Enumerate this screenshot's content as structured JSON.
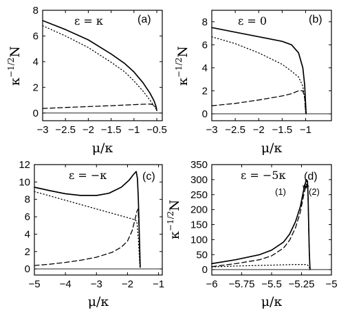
{
  "chart_data": [
    {
      "type": "line",
      "panel": "(a)",
      "annotation": "ε = κ",
      "xlabel": "μ/κ",
      "ylabel": "κ^{-1/2}N",
      "xlim": [
        -3,
        -0.38
      ],
      "ylim": [
        -0.6,
        8
      ],
      "xticks": [
        -3,
        -2.5,
        -2,
        -1.5,
        -1,
        -0.5
      ],
      "xticklabels": [
        "−3",
        "−2.5",
        "−2",
        "−1.5",
        "−1",
        "−0.5"
      ],
      "yticks": [
        0,
        2,
        4,
        6,
        8
      ],
      "yticklabels": [
        "0",
        "2",
        "4",
        "6",
        "8"
      ],
      "series": [
        {
          "style": "solid",
          "x": [
            -3,
            -2.5,
            -2,
            -1.5,
            -1.2,
            -1.0,
            -0.8,
            -0.65,
            -0.56,
            -0.52,
            -0.5
          ],
          "y": [
            7.2,
            6.5,
            5.7,
            4.6,
            3.85,
            3.2,
            2.35,
            1.55,
            0.95,
            0.55,
            0.2
          ]
        },
        {
          "style": "dotted",
          "x": [
            -3,
            -2.5,
            -2,
            -1.5,
            -1.2,
            -1.0,
            -0.8,
            -0.65,
            -0.56,
            -0.52,
            -0.5
          ],
          "y": [
            6.8,
            6.0,
            5.1,
            3.95,
            3.2,
            2.5,
            1.7,
            1.0,
            0.55,
            0.35,
            0.2
          ]
        },
        {
          "style": "dashed",
          "x": [
            -3,
            -2.5,
            -2,
            -1.5,
            -1.0,
            -0.8,
            -0.65,
            -0.56,
            -0.52,
            -0.5
          ],
          "y": [
            0.35,
            0.43,
            0.5,
            0.57,
            0.65,
            0.68,
            0.7,
            0.62,
            0.45,
            0.2
          ]
        },
        {
          "style": "thin",
          "x": [
            -3,
            -0.38
          ],
          "y": [
            0,
            0
          ]
        }
      ]
    },
    {
      "type": "line",
      "panel": "(b)",
      "annotation": "ε = 0",
      "xlabel": "μ/κ",
      "ylabel": "κ^{-1/2}N",
      "xlim": [
        -3,
        -0.45
      ],
      "ylim": [
        -0.6,
        9
      ],
      "xticks": [
        -3,
        -2.5,
        -2,
        -1.5,
        -1
      ],
      "xticklabels": [
        "−3",
        "−2.5",
        "−2",
        "−1.5",
        "−1"
      ],
      "yticks": [
        0,
        2,
        4,
        6,
        8
      ],
      "yticklabels": [
        "0",
        "2",
        "4",
        "6",
        "8"
      ],
      "series": [
        {
          "style": "solid",
          "x": [
            -3,
            -2.5,
            -2,
            -1.5,
            -1.3,
            -1.15,
            -1.06,
            -1.02,
            -1.0,
            -0.99
          ],
          "y": [
            7.5,
            7.1,
            6.7,
            6.3,
            6.0,
            5.3,
            4.0,
            2.5,
            0.8,
            0.0
          ]
        },
        {
          "style": "dotted",
          "x": [
            -3,
            -2.5,
            -2,
            -1.5,
            -1.3,
            -1.15,
            -1.06,
            -1.02,
            -1.0
          ],
          "y": [
            6.7,
            6.1,
            5.3,
            4.3,
            3.7,
            3.2,
            2.4,
            1.3,
            0.1
          ]
        },
        {
          "style": "dashed",
          "x": [
            -3,
            -2.5,
            -2,
            -1.5,
            -1.3,
            -1.15,
            -1.06,
            -1.02,
            -1.0
          ],
          "y": [
            0.7,
            0.9,
            1.2,
            1.55,
            1.75,
            2.0,
            2.0,
            1.4,
            0.1
          ]
        },
        {
          "style": "thin",
          "x": [
            -3,
            -0.45
          ],
          "y": [
            0,
            0
          ]
        }
      ]
    },
    {
      "type": "line",
      "panel": "(c)",
      "annotation": "ε = −κ",
      "xlabel": "μ/κ",
      "ylabel": "",
      "xlim": [
        -5,
        -0.88
      ],
      "ylim": [
        -0.7,
        12
      ],
      "xticks": [
        -5,
        -4,
        -3,
        -2,
        -1
      ],
      "xticklabels": [
        "−5",
        "−4",
        "−3",
        "−2",
        "−1"
      ],
      "yticks": [
        0,
        2,
        4,
        6,
        8,
        10,
        12
      ],
      "yticklabels": [
        "0",
        "2",
        "4",
        "6",
        "8",
        "10",
        "12"
      ],
      "series": [
        {
          "style": "solid",
          "x": [
            -5,
            -4.5,
            -4,
            -3.5,
            -3.0,
            -2.6,
            -2.2,
            -1.95,
            -1.8,
            -1.72,
            -1.68,
            -1.65,
            -1.62,
            -1.6,
            -1.59
          ],
          "y": [
            9.4,
            9.0,
            8.65,
            8.45,
            8.45,
            8.7,
            9.4,
            10.2,
            10.9,
            11.2,
            10.4,
            8.0,
            4.0,
            1.5,
            0.2
          ]
        },
        {
          "style": "dotted",
          "x": [
            -5,
            -4.5,
            -4,
            -3.5,
            -3.0,
            -2.5,
            -2.0,
            -1.8,
            -1.7,
            -1.65,
            -1.62,
            -1.6
          ],
          "y": [
            8.9,
            8.4,
            7.9,
            7.4,
            6.9,
            6.4,
            5.9,
            5.7,
            5.5,
            3.5,
            1.5,
            0.2
          ]
        },
        {
          "style": "dashed",
          "x": [
            -5,
            -4.5,
            -4,
            -3.5,
            -3.0,
            -2.5,
            -2.2,
            -2.0,
            -1.85,
            -1.75,
            -1.7,
            -1.66,
            -1.62,
            -1.6
          ],
          "y": [
            0.4,
            0.55,
            0.75,
            1.0,
            1.35,
            1.9,
            2.5,
            3.2,
            4.4,
            5.8,
            6.6,
            6.9,
            4.0,
            0.5
          ]
        },
        {
          "style": "thin",
          "x": [
            -5,
            -0.88
          ],
          "y": [
            0,
            0
          ]
        }
      ]
    },
    {
      "type": "line",
      "panel": "(d)",
      "annotation": "ε = −5κ",
      "xlabel": "μ/κ",
      "ylabel": "κ^{-1/2}N",
      "xlim": [
        -6,
        -5
      ],
      "ylim": [
        -18,
        350
      ],
      "xticks": [
        -6,
        -5.75,
        -5.5,
        -5.25,
        -5
      ],
      "xticklabels": [
        "−6",
        "−5.75",
        "−5.5",
        "−5.25",
        "−5"
      ],
      "yticks": [
        0,
        50,
        100,
        150,
        200,
        250,
        300,
        350
      ],
      "yticklabels": [
        "0",
        "50",
        "100",
        "150",
        "200",
        "250",
        "300",
        "350"
      ],
      "markers": [
        {
          "label": "(1)",
          "x": -5.225,
          "y": 272
        },
        {
          "label": "(2)",
          "x": -5.205,
          "y": 272
        }
      ],
      "series": [
        {
          "style": "solid",
          "x": [
            -6,
            -5.8,
            -5.6,
            -5.5,
            -5.4,
            -5.35,
            -5.3,
            -5.26,
            -5.23,
            -5.21,
            -5.2,
            -5.195,
            -5.19,
            -5.185,
            -5.18,
            -5.178
          ],
          "y": [
            20,
            33,
            50,
            65,
            92,
            118,
            160,
            210,
            270,
            300,
            295,
            240,
            150,
            60,
            10,
            0
          ]
        },
        {
          "style": "dashed",
          "x": [
            -6,
            -5.8,
            -5.6,
            -5.5,
            -5.4,
            -5.35,
            -5.3,
            -5.26,
            -5.23,
            -5.21,
            -5.2,
            -5.195,
            -5.19,
            -5.185,
            -5.18
          ],
          "y": [
            10,
            20,
            33,
            46,
            72,
            98,
            140,
            192,
            252,
            285,
            282,
            230,
            140,
            50,
            5
          ]
        },
        {
          "style": "dotted",
          "x": [
            -6,
            -5.8,
            -5.6,
            -5.5,
            -5.4,
            -5.3,
            -5.22,
            -5.2,
            -5.19,
            -5.18
          ],
          "y": [
            9,
            12,
            14,
            15,
            16,
            17,
            17,
            16,
            10,
            3
          ]
        },
        {
          "style": "thin",
          "x": [
            -6,
            -5
          ],
          "y": [
            0,
            0
          ]
        }
      ]
    }
  ]
}
